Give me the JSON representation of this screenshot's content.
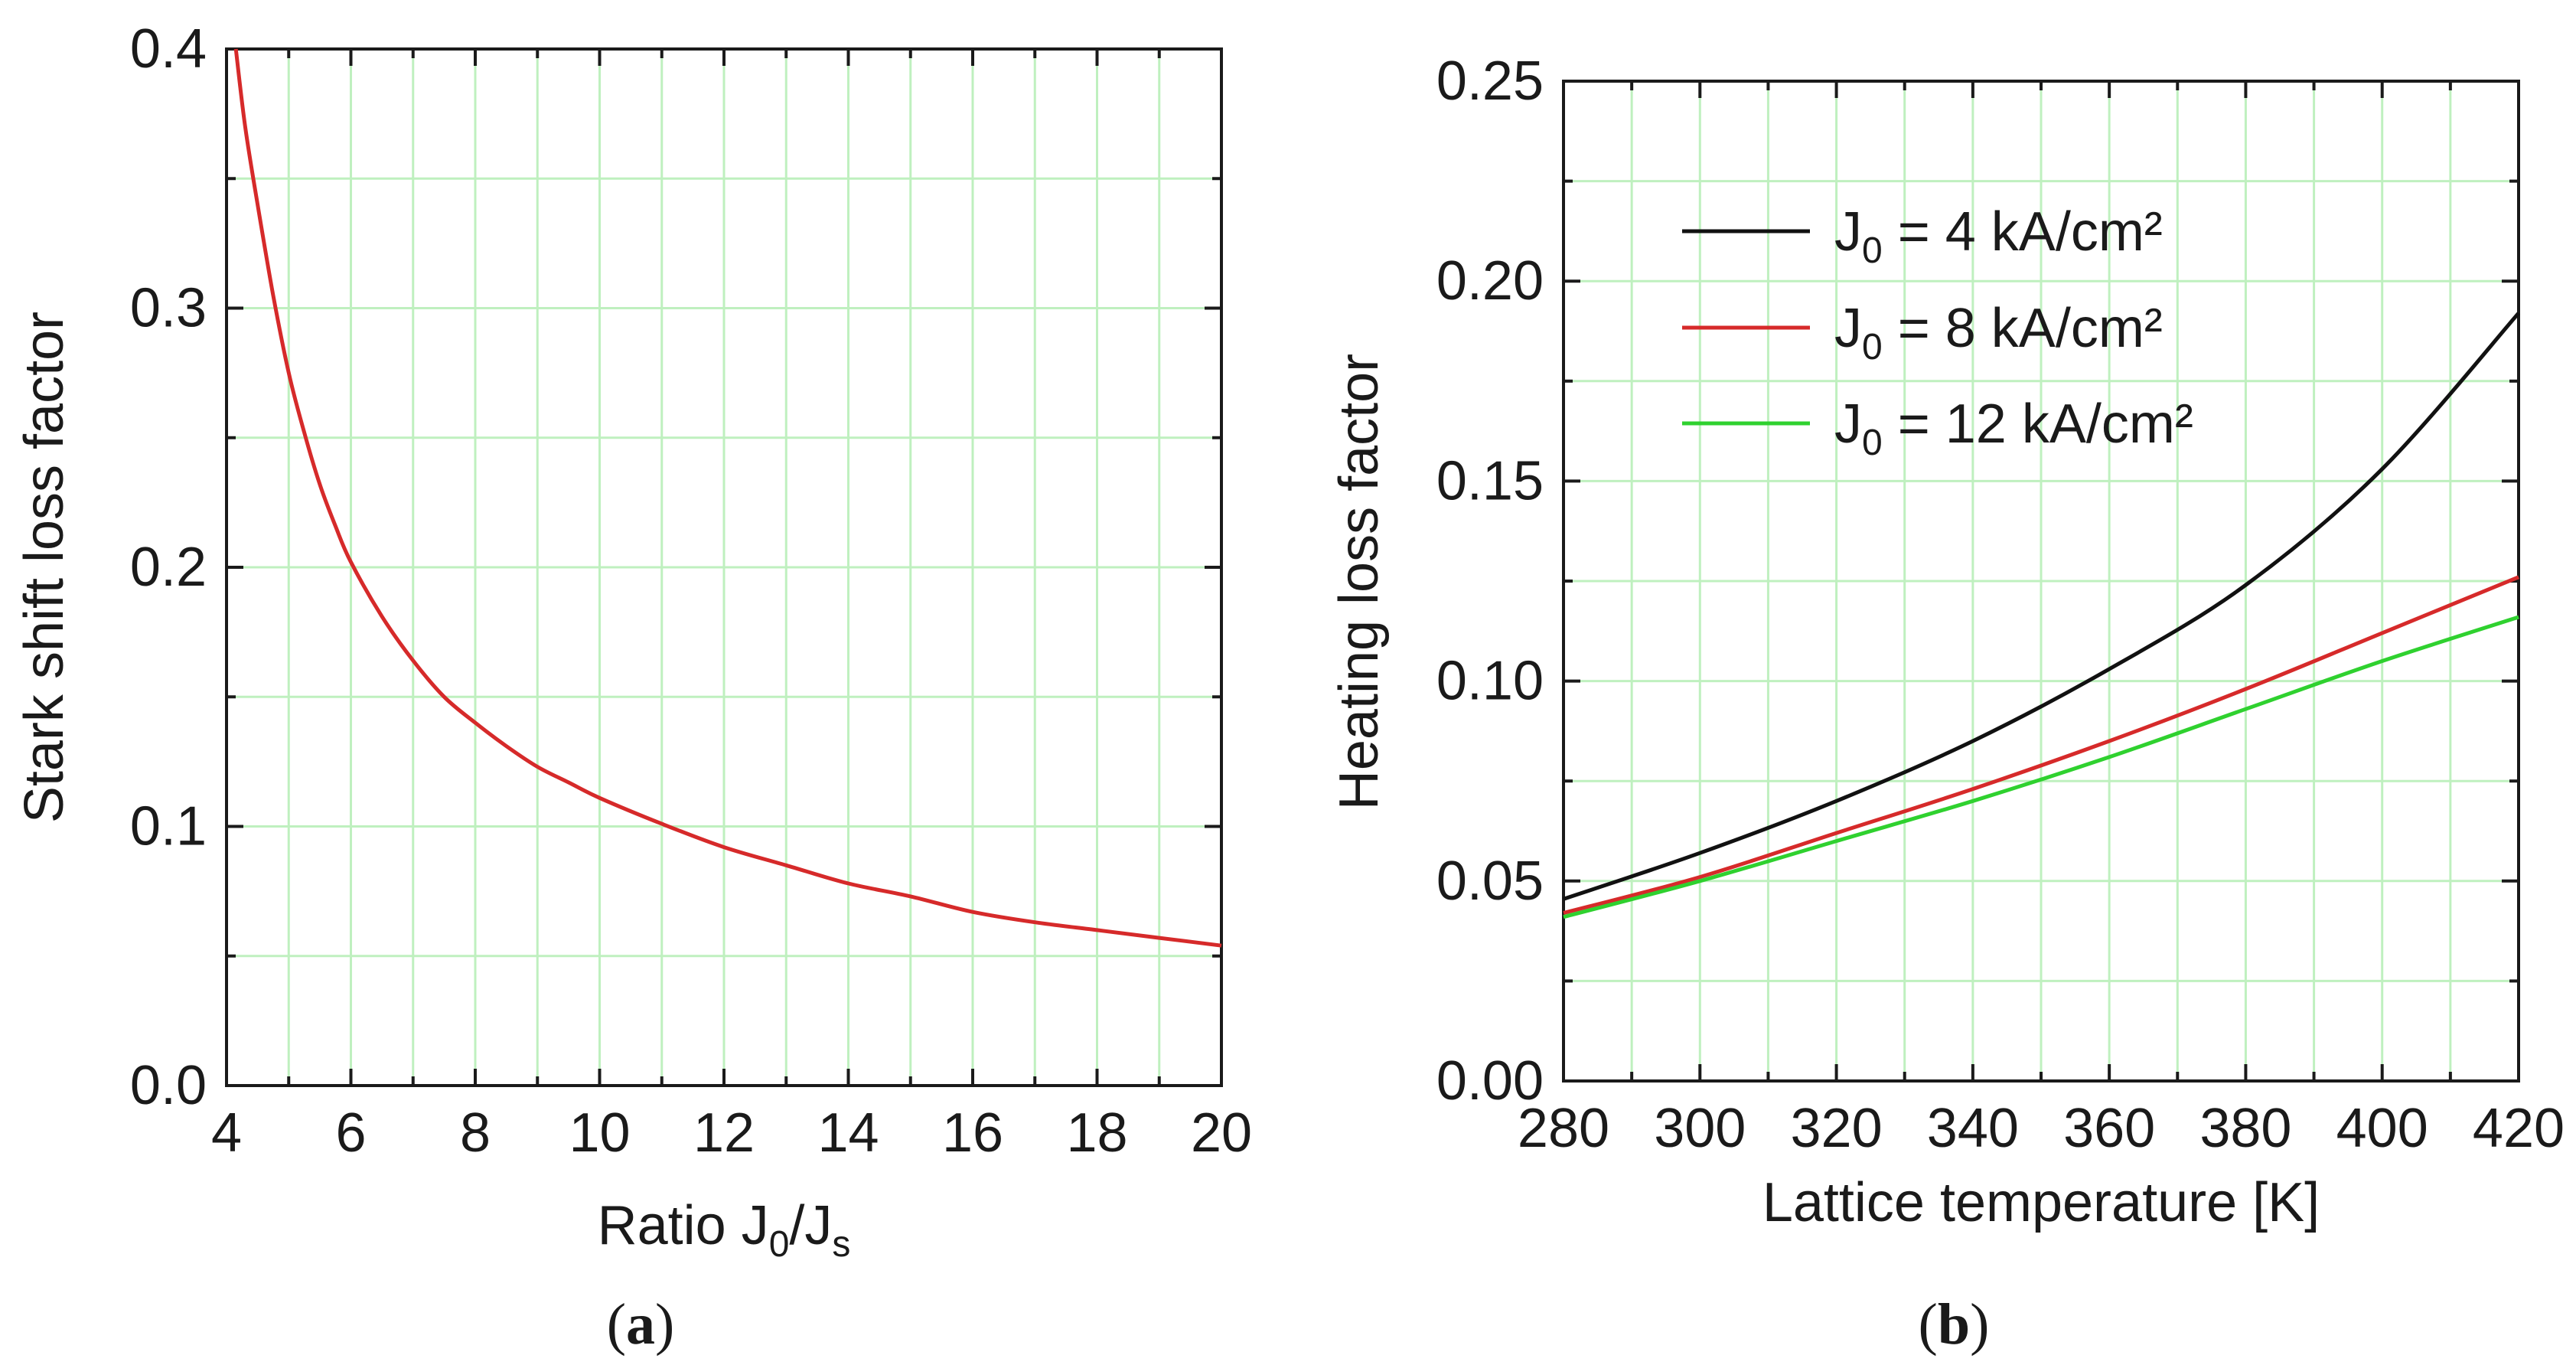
{
  "chart_data": [
    {
      "type": "line",
      "panel_label_prefix": "(",
      "panel_label_letter": "a",
      "panel_label_suffix": ")",
      "title": "",
      "ylabel": "Stark shift loss factor",
      "xlabel_main": "Ratio J",
      "xlabel_sub1": "0",
      "xlabel_mid": "/J",
      "xlabel_sub2": "s",
      "xlim": [
        4,
        20
      ],
      "ylim": [
        0.0,
        0.4
      ],
      "xticks": [
        4,
        6,
        8,
        10,
        12,
        14,
        16,
        18,
        20
      ],
      "xtick_labels": [
        "4",
        "6",
        "8",
        "10",
        "12",
        "14",
        "16",
        "18",
        "20"
      ],
      "yticks": [
        0.0,
        0.1,
        0.2,
        0.3,
        0.4
      ],
      "ytick_labels": [
        "0.0",
        "0.1",
        "0.2",
        "0.3",
        "0.4"
      ],
      "grid": true,
      "series": [
        {
          "name": "Stark shift loss factor",
          "color": "#d62a2a",
          "x": [
            4.15,
            4.3,
            4.5,
            4.75,
            5.0,
            5.25,
            5.5,
            5.75,
            6.0,
            6.5,
            7.0,
            7.5,
            8.0,
            8.5,
            9.0,
            9.5,
            10.0,
            11.0,
            12.0,
            13.0,
            14.0,
            15.0,
            16.0,
            17.0,
            18.0,
            19.0,
            20.0
          ],
          "y": [
            0.4,
            0.37,
            0.34,
            0.305,
            0.275,
            0.252,
            0.232,
            0.216,
            0.202,
            0.181,
            0.164,
            0.15,
            0.14,
            0.131,
            0.123,
            0.117,
            0.111,
            0.101,
            0.092,
            0.085,
            0.078,
            0.073,
            0.067,
            0.063,
            0.06,
            0.057,
            0.054
          ]
        }
      ]
    },
    {
      "type": "line",
      "panel_label_prefix": "(",
      "panel_label_letter": "b",
      "panel_label_suffix": ")",
      "title": "",
      "ylabel": "Heating loss factor",
      "xlabel": "Lattice temperature [K]",
      "xlim": [
        280,
        420
      ],
      "ylim": [
        0.0,
        0.25
      ],
      "xticks": [
        280,
        300,
        320,
        340,
        360,
        380,
        400,
        420
      ],
      "xtick_labels": [
        "280",
        "300",
        "320",
        "340",
        "360",
        "380",
        "400",
        "420"
      ],
      "yticks": [
        0.0,
        0.05,
        0.1,
        0.15,
        0.2,
        0.25
      ],
      "ytick_labels": [
        "0.00",
        "0.05",
        "0.10",
        "0.15",
        "0.20",
        "0.25"
      ],
      "grid": true,
      "legend_position": "top-left",
      "series": [
        {
          "legend_prefix": "J",
          "legend_sub": "0",
          "legend_suffix": " = 4 kA/cm²",
          "color": "#111111",
          "x": [
            280,
            300,
            320,
            340,
            360,
            380,
            400,
            420
          ],
          "y": [
            0.0455,
            0.057,
            0.07,
            0.085,
            0.103,
            0.124,
            0.153,
            0.192
          ]
        },
        {
          "legend_prefix": "J",
          "legend_sub": "0",
          "legend_suffix": " = 8 kA/cm²",
          "color": "#d62a2a",
          "x": [
            280,
            300,
            320,
            340,
            360,
            380,
            400,
            420
          ],
          "y": [
            0.042,
            0.051,
            0.062,
            0.073,
            0.085,
            0.098,
            0.112,
            0.126
          ]
        },
        {
          "legend_prefix": "J",
          "legend_sub": "0",
          "legend_suffix": " = 12 kA/cm²",
          "color": "#2fd12f",
          "x": [
            280,
            300,
            320,
            340,
            360,
            380,
            400,
            420
          ],
          "y": [
            0.041,
            0.05,
            0.06,
            0.07,
            0.081,
            0.093,
            0.105,
            0.116
          ]
        }
      ]
    }
  ]
}
